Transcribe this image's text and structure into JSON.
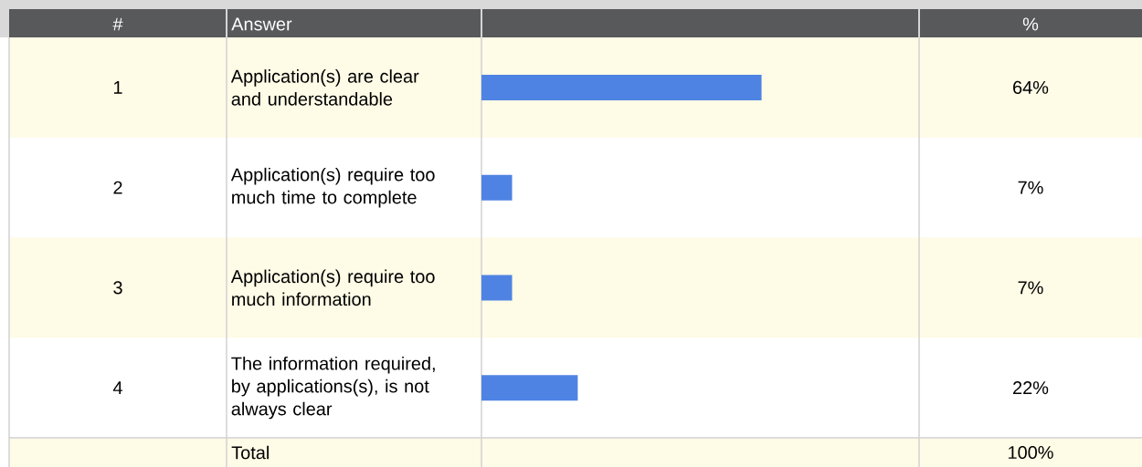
{
  "chart_data": {
    "type": "bar",
    "orientation": "horizontal",
    "categories": [
      "Application(s) are clear and understandable",
      "Application(s) require too much time to complete",
      "Application(s) require too much information",
      "The information required, by applications(s), is not always clear"
    ],
    "values": [
      64,
      7,
      7,
      22
    ],
    "color": "#4f83e3",
    "xlim": [
      0,
      100
    ],
    "value_labels": [
      "64%",
      "7%",
      "7%",
      "22%"
    ],
    "annotations": [
      "#",
      "Answer",
      "%",
      "1",
      "2",
      "3",
      "4",
      "Total",
      "100%"
    ]
  }
}
